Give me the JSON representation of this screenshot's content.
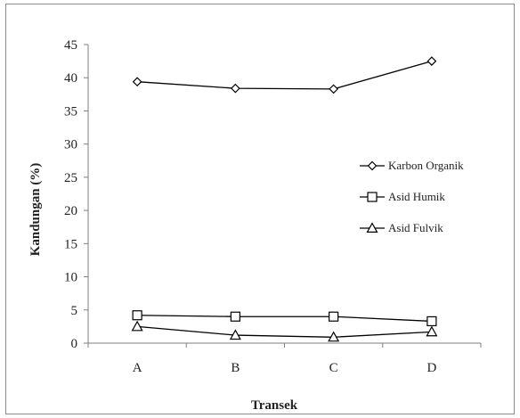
{
  "chart_data": {
    "type": "line",
    "title": "",
    "xlabel": "Transek",
    "ylabel": "Kandungan (%)",
    "categories": [
      "A",
      "B",
      "C",
      "D"
    ],
    "ylim": [
      0,
      45
    ],
    "yticks": [
      "0",
      "5",
      "10",
      "15",
      "20",
      "25",
      "30",
      "35",
      "40",
      "45"
    ],
    "grid": false,
    "legend_position": "right",
    "series": [
      {
        "name": "Karbon Organik",
        "marker": "diamond",
        "values": [
          39.4,
          38.4,
          38.3,
          42.5
        ]
      },
      {
        "name": "Asid Humik",
        "marker": "square",
        "values": [
          4.2,
          4.0,
          4.0,
          3.3
        ]
      },
      {
        "name": "Asid Fulvik",
        "marker": "triangle",
        "values": [
          2.5,
          1.2,
          0.9,
          1.7
        ]
      }
    ],
    "colors": {
      "line": "#000000",
      "marker_fill": "#ffffff"
    }
  }
}
